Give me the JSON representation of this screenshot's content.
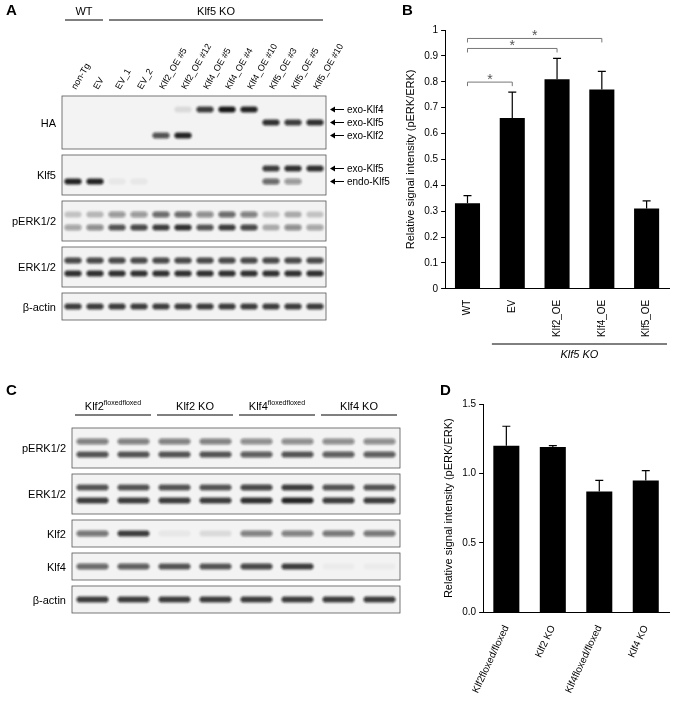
{
  "blots": [
    {
      "panel_label": "A",
      "groups": [
        {
          "label": "WT",
          "lanes": 2
        },
        {
          "label": "Klf5 KO",
          "lanes": 10
        }
      ],
      "lanes": [
        "non-Tg",
        "EV",
        "EV_1",
        "EV_2",
        "Klf2_OE #5",
        "Klf2_OE #12",
        "Klf4_OE #5",
        "Klf4_OE #4",
        "Klf4_OE #10",
        "Klf5_OE #3",
        "Klf5_OE #5",
        "Klf5_OE #10"
      ],
      "rows": [
        {
          "label": "HA",
          "bands": [
            {
              "label": "exo-Klf4",
              "intensities": [
                0,
                0,
                0,
                0,
                0,
                0.1,
                0.8,
                0.95,
                0.9,
                0,
                0,
                0
              ]
            },
            {
              "label": "exo-Klf5",
              "intensities": [
                0,
                0,
                0,
                0,
                0,
                0,
                0,
                0,
                0,
                0.85,
                0.8,
                0.85
              ]
            },
            {
              "label": "exo-Klf2",
              "intensities": [
                0,
                0,
                0,
                0,
                0.7,
                0.9,
                0,
                0,
                0,
                0,
                0,
                0
              ]
            }
          ]
        },
        {
          "label": "Klf5",
          "bands": [
            {
              "label": "exo-Klf5",
              "intensities": [
                0,
                0,
                0,
                0,
                0,
                0,
                0,
                0,
                0,
                0.8,
                0.85,
                0.85
              ]
            },
            {
              "label": "endo-Klf5",
              "intensities": [
                0.9,
                0.9,
                0.05,
                0.05,
                0,
                0,
                0,
                0,
                0,
                0.6,
                0.4,
                0
              ]
            }
          ]
        },
        {
          "label": "pERK1/2",
          "bands": [
            {
              "intensities": [
                0.2,
                0.25,
                0.4,
                0.4,
                0.6,
                0.6,
                0.45,
                0.6,
                0.5,
                0.2,
                0.3,
                0.2
              ]
            },
            {
              "intensities": [
                0.35,
                0.45,
                0.7,
                0.75,
                0.8,
                0.85,
                0.7,
                0.8,
                0.75,
                0.3,
                0.45,
                0.35
              ]
            }
          ]
        },
        {
          "label": "ERK1/2",
          "bands": [
            {
              "intensities": [
                0.75,
                0.75,
                0.75,
                0.75,
                0.75,
                0.75,
                0.75,
                0.75,
                0.75,
                0.75,
                0.75,
                0.75
              ]
            },
            {
              "intensities": [
                0.85,
                0.85,
                0.85,
                0.85,
                0.85,
                0.85,
                0.85,
                0.85,
                0.85,
                0.85,
                0.85,
                0.85
              ]
            }
          ]
        },
        {
          "label": "β-actin",
          "bands": [
            {
              "intensities": [
                0.8,
                0.8,
                0.8,
                0.8,
                0.8,
                0.8,
                0.8,
                0.8,
                0.8,
                0.8,
                0.8,
                0.8
              ]
            }
          ]
        }
      ]
    },
    {
      "panel_label": "C",
      "groups": [
        {
          "label": "Klf2",
          "superscript": "floxedfloxed",
          "lanes": 2
        },
        {
          "label": "Klf2 KO",
          "lanes": 2
        },
        {
          "label": "Klf4",
          "superscript": "floxedfloxed",
          "lanes": 2
        },
        {
          "label": "Klf4 KO",
          "lanes": 2
        }
      ],
      "rows": [
        {
          "label": "pERK1/2",
          "bands": [
            {
              "intensities": [
                0.5,
                0.5,
                0.5,
                0.5,
                0.45,
                0.45,
                0.45,
                0.45
              ]
            },
            {
              "intensities": [
                0.7,
                0.7,
                0.7,
                0.7,
                0.65,
                0.7,
                0.65,
                0.65
              ]
            }
          ]
        },
        {
          "label": "ERK1/2",
          "bands": [
            {
              "intensities": [
                0.7,
                0.7,
                0.7,
                0.7,
                0.75,
                0.8,
                0.7,
                0.7
              ]
            },
            {
              "intensities": [
                0.8,
                0.8,
                0.8,
                0.8,
                0.85,
                0.9,
                0.8,
                0.8
              ]
            }
          ]
        },
        {
          "label": "Klf2",
          "bands": [
            {
              "intensities": [
                0.55,
                0.8,
                0.05,
                0.1,
                0.5,
                0.5,
                0.55,
                0.55
              ]
            }
          ]
        },
        {
          "label": "Klf4",
          "bands": [
            {
              "intensities": [
                0.6,
                0.65,
                0.7,
                0.7,
                0.75,
                0.8,
                0.03,
                0.03
              ]
            }
          ]
        },
        {
          "label": "β-actin",
          "bands": [
            {
              "intensities": [
                0.8,
                0.8,
                0.8,
                0.8,
                0.8,
                0.8,
                0.8,
                0.8
              ]
            }
          ]
        }
      ]
    }
  ],
  "chart_data": [
    {
      "panel_label": "B",
      "type": "bar",
      "categories": [
        "WT",
        "EV",
        "Klf2_OE",
        "Klf4_OE",
        "Klf5_OE"
      ],
      "values": [
        0.33,
        0.66,
        0.81,
        0.77,
        0.31
      ],
      "errors": [
        0.03,
        0.1,
        0.08,
        0.07,
        0.03
      ],
      "color": "#000000",
      "ylabel": "Relative signal intensity (pERK/ERK)",
      "ylim": [
        0,
        1
      ],
      "yticks": [
        0,
        0.1,
        0.2,
        0.3,
        0.4,
        0.5,
        0.6,
        0.7,
        0.8,
        0.9,
        1
      ],
      "grid": false,
      "group_labels": [
        {
          "label": "Klf5 KO",
          "from": "EV",
          "to": "Klf5_OE"
        }
      ],
      "significance": [
        {
          "from": "WT",
          "to": "EV",
          "label": "*"
        },
        {
          "from": "WT",
          "to": "Klf2_OE",
          "label": "*"
        },
        {
          "from": "WT",
          "to": "Klf4_OE",
          "label": "*"
        }
      ]
    },
    {
      "panel_label": "D",
      "type": "bar",
      "categories": [
        "Klf2floxed/floxed",
        "Klf2 KO",
        "Klf4floxed/floxed",
        "Klf4 KO"
      ],
      "values": [
        1.2,
        1.19,
        0.87,
        0.95
      ],
      "errors": [
        0.14,
        0.01,
        0.08,
        0.07
      ],
      "color": "#000000",
      "ylabel": "Relative signal intensity (pERK/ERK)",
      "ylim": [
        0,
        1.5
      ],
      "yticks": [
        {
          "value": 0,
          "label": "0.0"
        },
        {
          "value": 0.5,
          "label": "0.5"
        },
        {
          "value": 1,
          "label": "1.0"
        },
        {
          "value": 1.5,
          "label": "1.5"
        }
      ],
      "grid": false
    }
  ]
}
